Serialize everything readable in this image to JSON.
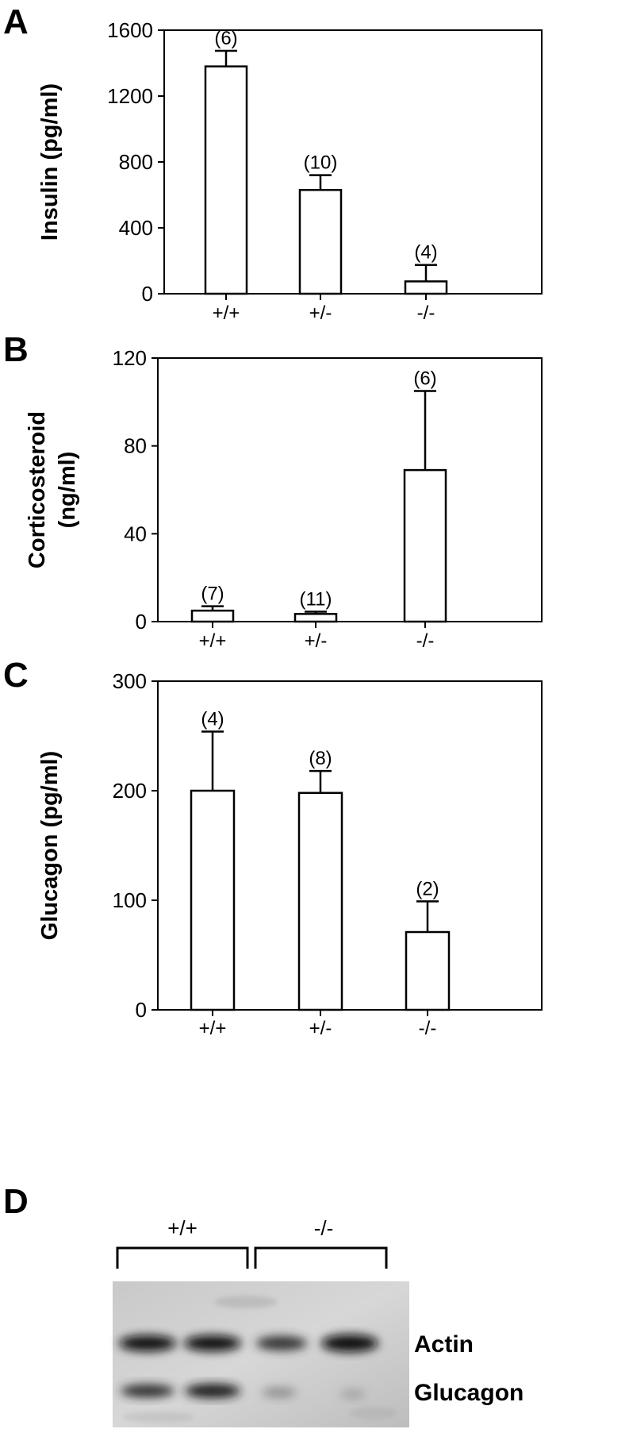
{
  "chart_data": [
    {
      "panel": "A",
      "type": "bar",
      "title": "",
      "xlabel": "",
      "ylabel": "Insulin (pg/ml)",
      "ylim": [
        0,
        1600
      ],
      "yticks": [
        0,
        400,
        800,
        1200,
        1600
      ],
      "categories": [
        "+/+",
        "+/-",
        "-/-"
      ],
      "values": [
        1380,
        630,
        75
      ],
      "errors": [
        95,
        90,
        100
      ],
      "n_labels": [
        "(6)",
        "(10)",
        "(4)"
      ]
    },
    {
      "panel": "B",
      "type": "bar",
      "title": "",
      "xlabel": "",
      "ylabel": "Corticosteroid (ng/ml)",
      "ylabel_lines": [
        "Corticosteroid",
        "(ng/ml)"
      ],
      "ylim": [
        0,
        120
      ],
      "yticks": [
        0,
        40,
        80,
        120
      ],
      "categories": [
        "+/+",
        "+/-",
        "-/-"
      ],
      "values": [
        5,
        3.5,
        69
      ],
      "errors": [
        2,
        1,
        36
      ],
      "n_labels": [
        "(7)",
        "(11)",
        "(6)"
      ]
    },
    {
      "panel": "C",
      "type": "bar",
      "title": "",
      "xlabel": "",
      "ylabel": "Glucagon (pg/ml)",
      "ylim": [
        0,
        300
      ],
      "yticks": [
        0,
        100,
        200,
        300
      ],
      "categories": [
        "+/+",
        "+/-",
        "-/-"
      ],
      "values": [
        200,
        198,
        71
      ],
      "errors": [
        54,
        20,
        28
      ],
      "n_labels": [
        "(4)",
        "(8)",
        "(2)"
      ]
    }
  ],
  "blot": {
    "panel": "D",
    "genotypes": [
      "+/+",
      "-/-"
    ],
    "bands": [
      "Actin",
      "Glucagon"
    ],
    "lanes": 4
  }
}
